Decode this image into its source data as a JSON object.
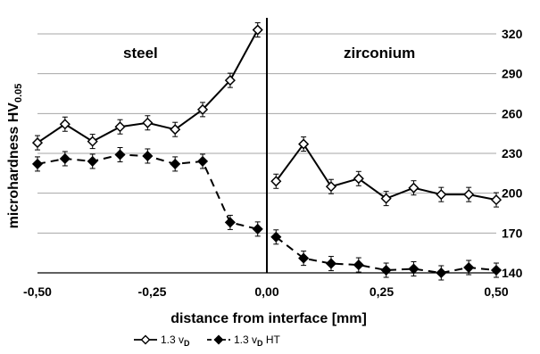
{
  "chart_data": {
    "type": "line",
    "xlabel": "distance from interface [mm]",
    "ylabel_main": "microhardness HV",
    "ylabel_sub": "0.05",
    "xlim": [
      -0.5,
      0.5
    ],
    "ylim": [
      140,
      320
    ],
    "x_ticks": [
      -0.5,
      -0.25,
      0.0,
      0.25,
      0.5
    ],
    "x_tick_labels": [
      "-0,50",
      "-0,25",
      "0,00",
      "0,25",
      "0,50"
    ],
    "y_ticks": [
      140,
      170,
      200,
      230,
      260,
      290,
      320
    ],
    "y_tick_labels": [
      "140",
      "170",
      "200",
      "230",
      "260",
      "290",
      "320"
    ],
    "grid": "horizontal",
    "interface_x": 0.0,
    "region_labels": {
      "left": "steel",
      "right": "zirconium"
    },
    "legend_position": "bottom",
    "series": [
      {
        "name": "1.3 vD",
        "legend_main": "1.3 v",
        "legend_sub": "D",
        "legend_suffix": "",
        "marker": "diamond-open",
        "line": "solid",
        "color": "#000000",
        "segments": [
          {
            "x": [
              -0.5,
              -0.44,
              -0.38,
              -0.32,
              -0.26,
              -0.2,
              -0.14,
              -0.08,
              -0.02
            ],
            "y": [
              238,
              252,
              239,
              250,
              253,
              248,
              263,
              285,
              323
            ]
          },
          {
            "x": [
              0.02,
              0.08,
              0.14,
              0.2,
              0.26,
              0.32,
              0.38,
              0.44,
              0.5
            ],
            "y": [
              209,
              237,
              205,
              211,
              196,
              204,
              199,
              199,
              195
            ]
          }
        ]
      },
      {
        "name": "1.3 vD HT",
        "legend_main": "1.3 v",
        "legend_sub": "D",
        "legend_suffix": "HT",
        "marker": "diamond-filled",
        "line": "dashed",
        "color": "#000000",
        "segments": [
          {
            "x": [
              -0.5,
              -0.44,
              -0.38,
              -0.32,
              -0.26,
              -0.2,
              -0.14,
              -0.08,
              -0.02
            ],
            "y": [
              222,
              226,
              224,
              229,
              228,
              222,
              224,
              178,
              173
            ]
          },
          {
            "x": [
              0.02,
              0.08,
              0.14,
              0.2,
              0.26,
              0.32,
              0.38,
              0.44,
              0.5
            ],
            "y": [
              167,
              151,
              147,
              146,
              142,
              143,
              140,
              144,
              142
            ]
          }
        ]
      }
    ]
  }
}
